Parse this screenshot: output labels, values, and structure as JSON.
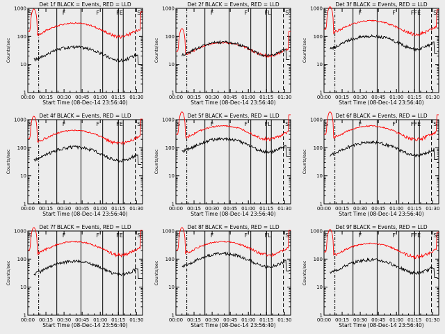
{
  "chart_data": {
    "type": "line",
    "yscale": "log",
    "ylim": [
      1,
      1000
    ],
    "y_ticks": [
      "1",
      "10",
      "100",
      "1000"
    ],
    "x_ticks": [
      "00:00",
      "00:15",
      "00:30",
      "00:45",
      "01:00",
      "01:15",
      "01:30"
    ],
    "xlim_minutes": [
      0,
      95
    ],
    "ylabel": "Counts/sec",
    "xlabel": "Start Time (08-Dec-14 23:56:40)",
    "series_colors": {
      "Events": "#000000",
      "LLD": "#ff0000"
    },
    "panels": [
      {
        "title": "Det 1f BLACK = Events, RED = LLD",
        "markers": [
          {
            "label": "S",
            "x": 2
          },
          {
            "label": "F",
            "x": 30
          },
          {
            "label": "F",
            "x": 58
          },
          {
            "label": "FE",
            "x": 76
          },
          {
            "label": "S",
            "x": 92
          }
        ],
        "events_peak": 40,
        "lld_level": 250
      },
      {
        "title": "Det 2f BLACK = Events, RED = LLD",
        "markers": [
          {
            "label": "F",
            "x": 30
          },
          {
            "label": "F",
            "x": 58
          },
          {
            "label": "FL",
            "x": 76
          },
          {
            "label": "S",
            "x": 92
          }
        ],
        "events_peak": 60,
        "lld_level": 50
      },
      {
        "title": "Det 3f BLACK = Events, RED = LLD",
        "markers": [
          {
            "label": "S",
            "x": 2
          },
          {
            "label": "F",
            "x": 30
          },
          {
            "label": "F",
            "x": 58
          },
          {
            "label": "FFE",
            "x": 76
          },
          {
            "label": "S",
            "x": 92
          }
        ],
        "events_peak": 100,
        "lld_level": 300
      },
      {
        "title": "Det 4f BLACK = Events, RED = LLD",
        "markers": [
          {
            "label": "S",
            "x": 2
          },
          {
            "label": "F",
            "x": 30
          },
          {
            "label": "F",
            "x": 58
          },
          {
            "label": "FE",
            "x": 76
          },
          {
            "label": "S",
            "x": 92
          }
        ],
        "events_peak": 100,
        "lld_level": 350
      },
      {
        "title": "Det 5f BLACK = Events, RED = LLD",
        "markers": [
          {
            "label": "S",
            "x": 2
          },
          {
            "label": "F",
            "x": 30
          },
          {
            "label": "F",
            "x": 58
          },
          {
            "label": "FL",
            "x": 76
          },
          {
            "label": "S",
            "x": 92
          }
        ],
        "events_peak": 200,
        "lld_level": 500
      },
      {
        "title": "Det 6f BLACK = Events, RED = LLD",
        "markers": [
          {
            "label": "S",
            "x": 2
          },
          {
            "label": "F",
            "x": 30
          },
          {
            "label": "F",
            "x": 58
          },
          {
            "label": "FFE",
            "x": 76
          },
          {
            "label": "S",
            "x": 92
          }
        ],
        "events_peak": 150,
        "lld_level": 500
      },
      {
        "title": "Det 7f BLACK = Events, RED = LLD",
        "markers": [
          {
            "label": "S",
            "x": 2
          },
          {
            "label": "F",
            "x": 30
          },
          {
            "label": "F",
            "x": 58
          },
          {
            "label": "FE",
            "x": 76
          },
          {
            "label": "S",
            "x": 92
          }
        ],
        "events_peak": 80,
        "lld_level": 350
      },
      {
        "title": "Det 8f BLACK = Events, RED = LLD",
        "markers": [
          {
            "label": "S",
            "x": 2
          },
          {
            "label": "F",
            "x": 30
          },
          {
            "label": "F",
            "x": 58
          },
          {
            "label": "FL",
            "x": 76
          },
          {
            "label": "S",
            "x": 92
          }
        ],
        "events_peak": 150,
        "lld_level": 350
      },
      {
        "title": "Det 9f BLACK = Events, RED = LLD",
        "markers": [
          {
            "label": "S",
            "x": 2
          },
          {
            "label": "F",
            "x": 30
          },
          {
            "label": "F",
            "x": 58
          },
          {
            "label": "FFE",
            "x": 76
          },
          {
            "label": "S",
            "x": 92
          }
        ],
        "events_peak": 90,
        "lld_level": 300
      }
    ]
  }
}
